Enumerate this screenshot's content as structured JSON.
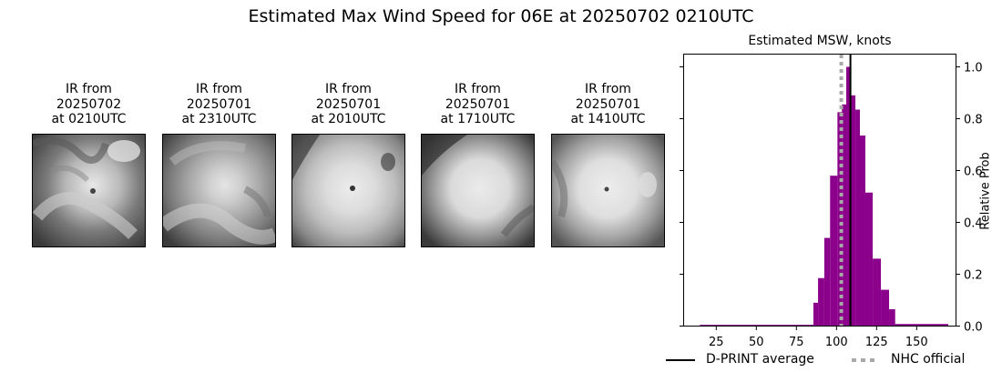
{
  "suptitle": "Estimated Max Wind Speed for 06E at 20250702 0210UTC",
  "thumbnails": [
    {
      "line1": "IR from",
      "line2": "20250702",
      "line3": "at 0210UTC",
      "icon": "satellite-ir-image"
    },
    {
      "line1": "IR from",
      "line2": "20250701",
      "line3": "at 2310UTC",
      "icon": "satellite-ir-image"
    },
    {
      "line1": "IR from",
      "line2": "20250701",
      "line3": "at 2010UTC",
      "icon": "satellite-ir-image"
    },
    {
      "line1": "IR from",
      "line2": "20250701",
      "line3": "at 1710UTC",
      "icon": "satellite-ir-image"
    },
    {
      "line1": "IR from",
      "line2": "20250701",
      "line3": "at 1410UTC",
      "icon": "satellite-ir-image"
    }
  ],
  "chart": {
    "title": "Estimated MSW, knots",
    "ylabel": "Relative Prob",
    "xticks": [
      "25",
      "50",
      "75",
      "100",
      "125",
      "150"
    ],
    "yticks": [
      "0.0",
      "0.2",
      "0.4",
      "0.6",
      "0.8",
      "1.0"
    ],
    "legend": {
      "dprint": "D-PRINT average",
      "nhc": "NHC official"
    },
    "colors": {
      "bars": "#8b008b",
      "dprint": "#000000",
      "nhc": "#a9a9a9"
    }
  },
  "chart_data": {
    "type": "bar",
    "title": "Estimated MSW, knots",
    "suptitle": "Estimated Max Wind Speed for 06E at 20250702 0210UTC",
    "xlabel": "",
    "ylabel": "Relative Prob",
    "xlim": [
      6,
      174
    ],
    "ylim": [
      0,
      1.05
    ],
    "xticks": [
      25,
      50,
      75,
      100,
      125,
      150
    ],
    "yticks": [
      0.0,
      0.2,
      0.4,
      0.6,
      0.8,
      1.0
    ],
    "y_axis_position": "right",
    "grid": false,
    "bins": [
      {
        "left": 14.8,
        "right": 85.6,
        "value": 0.005
      },
      {
        "left": 85.6,
        "right": 88.5,
        "value": 0.09
      },
      {
        "left": 88.5,
        "right": 92.4,
        "value": 0.185
      },
      {
        "left": 92.4,
        "right": 96.0,
        "value": 0.34
      },
      {
        "left": 96.0,
        "right": 100.6,
        "value": 0.58
      },
      {
        "left": 100.6,
        "right": 103.4,
        "value": 0.825
      },
      {
        "left": 103.4,
        "right": 106.1,
        "value": 0.855
      },
      {
        "left": 106.1,
        "right": 108.7,
        "value": 1.0
      },
      {
        "left": 108.7,
        "right": 111.8,
        "value": 0.89
      },
      {
        "left": 111.8,
        "right": 114.6,
        "value": 0.835
      },
      {
        "left": 114.6,
        "right": 118.0,
        "value": 0.735
      },
      {
        "left": 118.0,
        "right": 122.6,
        "value": 0.515
      },
      {
        "left": 122.6,
        "right": 127.7,
        "value": 0.26
      },
      {
        "left": 127.7,
        "right": 132.8,
        "value": 0.14
      },
      {
        "left": 132.8,
        "right": 136.6,
        "value": 0.065
      },
      {
        "left": 136.6,
        "right": 169.7,
        "value": 0.008
      }
    ],
    "vlines": [
      {
        "name": "D-PRINT average",
        "x": 108.7,
        "style": "solid",
        "color": "#000000"
      },
      {
        "name": "NHC official",
        "x": 103,
        "style": "dotted",
        "color": "#a9a9a9"
      }
    ],
    "legend": [
      "D-PRINT average",
      "NHC official"
    ],
    "legend_position": "below"
  }
}
